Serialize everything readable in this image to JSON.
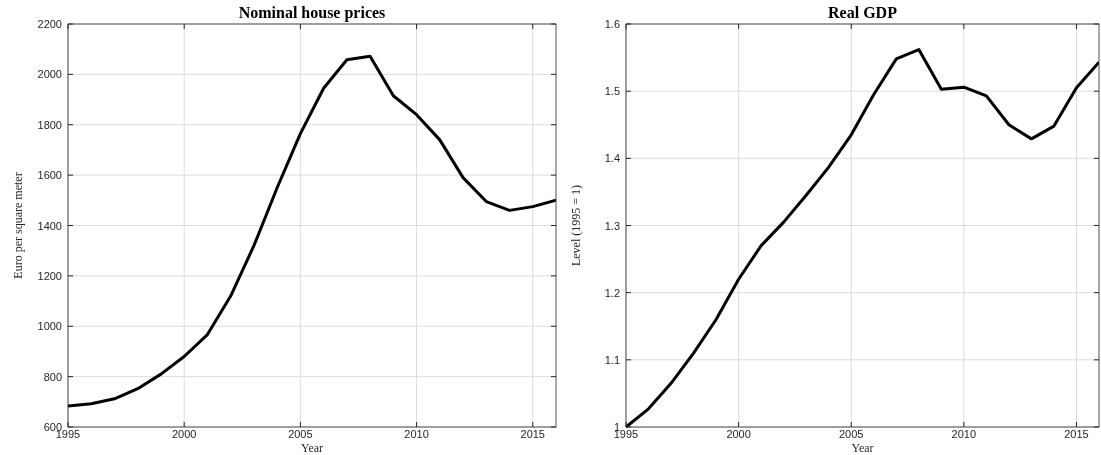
{
  "chart_data": [
    {
      "type": "line",
      "title": "Nominal house prices",
      "xlabel": "Year",
      "ylabel": "Euro per square meter",
      "x": [
        1995,
        1996,
        1997,
        1998,
        1999,
        2000,
        2001,
        2002,
        2003,
        2004,
        2005,
        2006,
        2007,
        2008,
        2009,
        2010,
        2011,
        2012,
        2013,
        2014,
        2015,
        2016
      ],
      "series": [
        {
          "color": "#000000",
          "values": [
            683,
            692,
            712,
            752,
            810,
            880,
            967,
            1120,
            1320,
            1550,
            1765,
            1945,
            2058,
            2072,
            1915,
            1840,
            1740,
            1590,
            1495,
            1460,
            1475,
            1500
          ]
        }
      ],
      "xlim": [
        1995,
        2016
      ],
      "xticks": [
        1995,
        2000,
        2005,
        2010,
        2015
      ],
      "ylim": [
        600,
        2200
      ],
      "yticks": [
        600,
        800,
        1000,
        1200,
        1400,
        1600,
        1800,
        2000,
        2200
      ],
      "grid": true
    },
    {
      "type": "line",
      "title": "Real GDP",
      "xlabel": "Year",
      "ylabel": "Level (1995 = 1)",
      "x": [
        1995,
        1996,
        1997,
        1998,
        1999,
        2000,
        2001,
        2002,
        2003,
        2004,
        2005,
        2006,
        2007,
        2008,
        2009,
        2010,
        2011,
        2012,
        2013,
        2014,
        2015,
        2016
      ],
      "series": [
        {
          "color": "#000000",
          "values": [
            1.0,
            1.027,
            1.065,
            1.11,
            1.16,
            1.22,
            1.27,
            1.305,
            1.345,
            1.387,
            1.435,
            1.495,
            1.548,
            1.562,
            1.503,
            1.506,
            1.493,
            1.45,
            1.429,
            1.448,
            1.505,
            1.543
          ]
        }
      ],
      "xlim": [
        1995,
        2016
      ],
      "xticks": [
        1995,
        2000,
        2005,
        2010,
        2015
      ],
      "ylim": [
        1,
        1.6
      ],
      "yticks": [
        1,
        1.1,
        1.2,
        1.3,
        1.4,
        1.5,
        1.6
      ],
      "grid": true
    }
  ]
}
